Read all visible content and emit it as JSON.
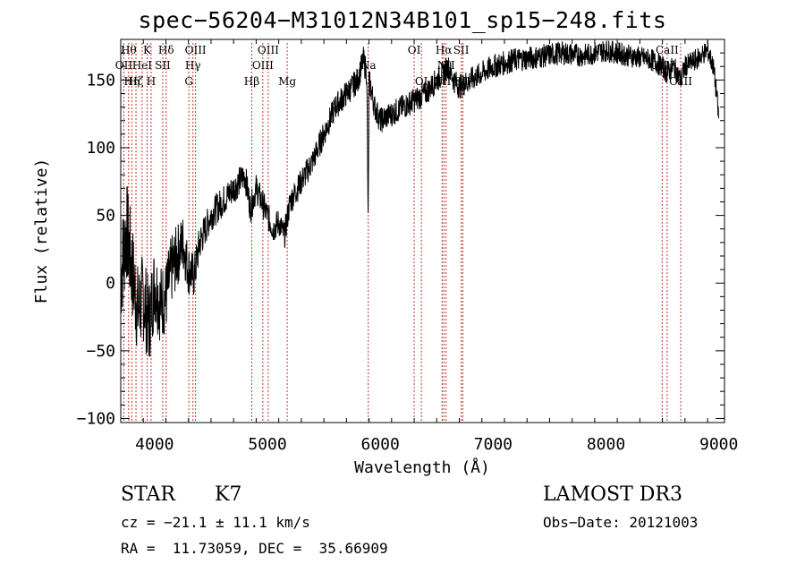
{
  "chart_data": {
    "type": "line",
    "title": "spec−56204−M31012N34B101_sp15−248.fits",
    "xlabel": "Wavelength (Å)",
    "ylabel": "Flux (relative)",
    "xlim": [
      3700,
      9050
    ],
    "ylim": [
      -103,
      180
    ],
    "x_ticks": [
      4000,
      5000,
      6000,
      7000,
      8000,
      9000
    ],
    "y_ticks": [
      -100,
      -50,
      0,
      50,
      100,
      150
    ],
    "y_tick_labels": [
      "−100",
      "−50",
      "0",
      "50",
      "100",
      "150"
    ],
    "series": [
      {
        "name": "flux",
        "x": [
          3700,
          3750,
          3800,
          3850,
          3900,
          3950,
          4000,
          4050,
          4100,
          4150,
          4200,
          4250,
          4300,
          4350,
          4400,
          4450,
          4500,
          4600,
          4700,
          4800,
          4850,
          4900,
          4950,
          5000,
          5050,
          5100,
          5150,
          5200,
          5300,
          5400,
          5500,
          5600,
          5700,
          5800,
          5850,
          5880,
          5893,
          5900,
          5950,
          6000,
          6100,
          6200,
          6300,
          6400,
          6500,
          6560,
          6600,
          6650,
          6700,
          6800,
          6900,
          7000,
          7200,
          7400,
          7600,
          7800,
          8000,
          8200,
          8400,
          8500,
          8540,
          8600,
          8660,
          8700,
          8800,
          8900,
          8950,
          8980,
          9000
        ],
        "y": [
          5,
          40,
          10,
          -20,
          -10,
          -30,
          0,
          -15,
          -10,
          10,
          20,
          30,
          10,
          5,
          30,
          40,
          50,
          60,
          70,
          80,
          55,
          70,
          60,
          50,
          40,
          45,
          35,
          60,
          75,
          90,
          110,
          130,
          140,
          150,
          165,
          155,
          40,
          150,
          130,
          120,
          125,
          130,
          135,
          140,
          150,
          155,
          160,
          150,
          145,
          150,
          155,
          160,
          165,
          167,
          170,
          168,
          172,
          168,
          165,
          160,
          155,
          160,
          150,
          160,
          165,
          172,
          160,
          140,
          120
        ]
      }
    ],
    "noise": [
      [
        3700,
        40
      ],
      [
        4150,
        26
      ],
      [
        4450,
        12
      ],
      [
        5300,
        10
      ],
      [
        9000,
        8
      ]
    ],
    "lines": [
      {
        "wave": 3727,
        "labels": [
          "OII"
        ],
        "row": 1
      },
      {
        "wave": 3770,
        "labels": [
          "Hθ"
        ],
        "row": 0
      },
      {
        "wave": 3798,
        "labels": [
          "Hη"
        ],
        "row": 2
      },
      {
        "wave": 3835,
        "labels": [
          "Hζ"
        ],
        "row": 2
      },
      {
        "wave": 3889,
        "labels": [
          "HeI"
        ],
        "row": 1
      },
      {
        "wave": 3934,
        "labels": [
          "K"
        ],
        "row": 0
      },
      {
        "wave": 3969,
        "labels": [
          "H"
        ],
        "row": 2
      },
      {
        "wave": 4072,
        "labels": [
          "SII"
        ],
        "row": 1
      },
      {
        "wave": 4102,
        "labels": [
          "Hδ"
        ],
        "row": 0
      },
      {
        "wave": 4304,
        "labels": [
          "G"
        ],
        "row": 2
      },
      {
        "wave": 4340,
        "labels": [
          "Hγ"
        ],
        "row": 1
      },
      {
        "wave": 4363,
        "labels": [
          "OIII"
        ],
        "row": 0
      },
      {
        "wave": 4861,
        "labels": [
          "Hβ"
        ],
        "row": 2
      },
      {
        "wave": 4959,
        "labels": [
          "OIII"
        ],
        "row": 1
      },
      {
        "wave": 5007,
        "labels": [
          "OIII"
        ],
        "row": 0
      },
      {
        "wave": 5175,
        "labels": [
          "Mg"
        ],
        "row": 2
      },
      {
        "wave": 5893,
        "labels": [
          "Na"
        ],
        "row": 1
      },
      {
        "wave": 6300,
        "labels": [
          "OI"
        ],
        "row": 0
      },
      {
        "wave": 6364,
        "labels": [
          "OI"
        ],
        "row": 2
      },
      {
        "wave": 6548,
        "labels": [
          "NII"
        ],
        "row": 2
      },
      {
        "wave": 6563,
        "labels": [
          "Hα"
        ],
        "row": 0
      },
      {
        "wave": 6583,
        "labels": [
          "NII"
        ],
        "row": 1
      },
      {
        "wave": 6717,
        "labels": [
          "SII"
        ],
        "row": 0
      },
      {
        "wave": 6731,
        "labels": [
          "SII"
        ],
        "row": 2
      },
      {
        "wave": 8498,
        "labels": [
          "CaII"
        ],
        "row": 1
      },
      {
        "wave": 8542,
        "labels": [
          "CaII"
        ],
        "row": 0
      },
      {
        "wave": 8662,
        "labels": [
          "CaII"
        ],
        "row": 2
      }
    ]
  },
  "info": {
    "object_type": "STAR",
    "subclass": "K7",
    "cz": "cz = −21.1 ± 11.1 km/s",
    "coords": "RA =  11.73059, DEC =  35.66909",
    "survey": "LAMOST DR3",
    "obs_date": "Obs−Date: 20121003"
  },
  "colors": {
    "line_marker": "#c0392b",
    "spectrum": "#000000",
    "axis": "#000000"
  }
}
